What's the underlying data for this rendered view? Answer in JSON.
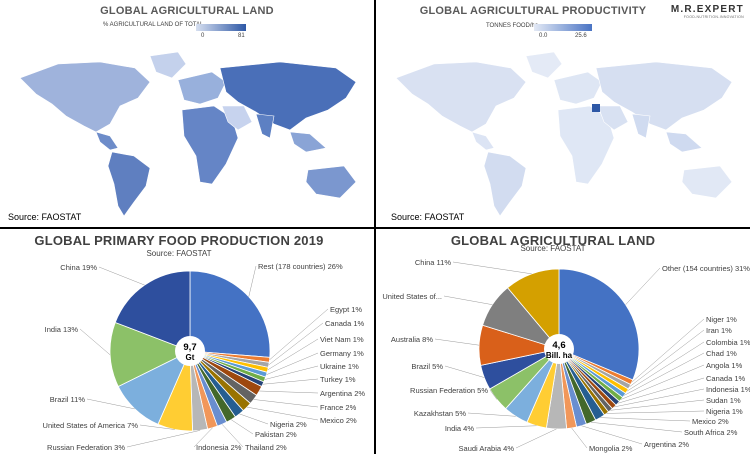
{
  "maps": {
    "land": {
      "title": "GLOBAL AGRICULTURAL LAND",
      "legend_title": "% AGRICULTURAL LAND OF TOTAL",
      "legend_min": "0",
      "legend_max": "81",
      "source": "Source: FAOSTAT",
      "color_light": "#d6dff0",
      "color_dark": "#2e58a6"
    },
    "productivity": {
      "title": "GLOBAL AGRICULTURAL PRODUCTIVITY",
      "legend_title": "TONNES FOOD/ha",
      "legend_min": "0.0",
      "legend_max": "25.6",
      "source": "Source: FAOSTAT",
      "color_light": "#e3e9f5",
      "color_dark": "#4a74c4"
    }
  },
  "brand": {
    "name": "M.R.EXPERT",
    "tagline": "FOOD-NUTRITION-INNOVATION"
  },
  "chart_data": [
    {
      "type": "pie",
      "title": "GLOBAL PRIMARY FOOD PRODUCTION 2019",
      "subtitle": "Source: FAOSTAT",
      "center_value": "9,7",
      "center_unit": "Gt",
      "slices": [
        {
          "label": "Rest (178 countries) 26%",
          "value": 26,
          "color": "#4472c4"
        },
        {
          "label": "Egypt 1%",
          "value": 1,
          "color": "#ed7d31"
        },
        {
          "label": "Canada 1%",
          "value": 1,
          "color": "#a5a5a5"
        },
        {
          "label": "Viet Nam 1%",
          "value": 1,
          "color": "#ffc000"
        },
        {
          "label": "Germany 1%",
          "value": 1,
          "color": "#5b9bd5"
        },
        {
          "label": "Ukraine 1%",
          "value": 1,
          "color": "#70ad47"
        },
        {
          "label": "Turkey 1%",
          "value": 1,
          "color": "#264478"
        },
        {
          "label": "Argentina 2%",
          "value": 2,
          "color": "#9e480e"
        },
        {
          "label": "France 2%",
          "value": 2,
          "color": "#636363"
        },
        {
          "label": "Mexico 2%",
          "value": 2,
          "color": "#997300"
        },
        {
          "label": "Nigeria 2%",
          "value": 2,
          "color": "#255e91"
        },
        {
          "label": "Pakistan 2%",
          "value": 2,
          "color": "#43682b"
        },
        {
          "label": "Thailand 2%",
          "value": 2,
          "color": "#698ed0"
        },
        {
          "label": "Indonesia 2%",
          "value": 2,
          "color": "#f1975a"
        },
        {
          "label": "Russian Federation 3%",
          "value": 3,
          "color": "#b7b7b7"
        },
        {
          "label": "United States of America 7%",
          "value": 7,
          "color": "#ffcd33"
        },
        {
          "label": "Brazil 11%",
          "value": 11,
          "color": "#7cafdd"
        },
        {
          "label": "India 13%",
          "value": 13,
          "color": "#8cc168"
        },
        {
          "label": "China 19%",
          "value": 19,
          "color": "#2e4f9e"
        }
      ]
    },
    {
      "type": "pie",
      "title": "GLOBAL AGRICULTURAL LAND",
      "subtitle": "Source: FAOSTAT",
      "center_value": "4,6",
      "center_unit": "Bill. ha",
      "slices": [
        {
          "label": "Other (154 countries) 31%",
          "value": 31,
          "color": "#4472c4"
        },
        {
          "label": "Niger 1%",
          "value": 1,
          "color": "#ed7d31"
        },
        {
          "label": "Iran 1%",
          "value": 1,
          "color": "#a5a5a5"
        },
        {
          "label": "Colombia 1%",
          "value": 1,
          "color": "#ffc000"
        },
        {
          "label": "Chad 1%",
          "value": 1,
          "color": "#5b9bd5"
        },
        {
          "label": "Angola 1%",
          "value": 1,
          "color": "#70ad47"
        },
        {
          "label": "Canada 1%",
          "value": 1,
          "color": "#264478"
        },
        {
          "label": "Indonesia 1%",
          "value": 1,
          "color": "#9e480e"
        },
        {
          "label": "Sudan 1%",
          "value": 1,
          "color": "#636363"
        },
        {
          "label": "Nigeria 1%",
          "value": 1,
          "color": "#997300"
        },
        {
          "label": "Mexico 2%",
          "value": 2,
          "color": "#255e91"
        },
        {
          "label": "South Africa 2%",
          "value": 2,
          "color": "#43682b"
        },
        {
          "label": "Argentina 2%",
          "value": 2,
          "color": "#698ed0"
        },
        {
          "label": "Mongolia 2%",
          "value": 2,
          "color": "#f1975a"
        },
        {
          "label": "Saudi Arabia 4%",
          "value": 4,
          "color": "#b7b7b7"
        },
        {
          "label": "India 4%",
          "value": 4,
          "color": "#ffcd33"
        },
        {
          "label": "Kazakhstan 5%",
          "value": 5,
          "color": "#7cafdd"
        },
        {
          "label": "Russian Federation 5%",
          "value": 5,
          "color": "#8cc168"
        },
        {
          "label": "Brazil 5%",
          "value": 5,
          "color": "#2e4f9e"
        },
        {
          "label": "Australia 8%",
          "value": 8,
          "color": "#d9601a"
        },
        {
          "label": "United States of...",
          "value": 9,
          "color": "#7f7f7f"
        },
        {
          "label": "China 11%",
          "value": 11,
          "color": "#d4a000"
        }
      ]
    }
  ]
}
